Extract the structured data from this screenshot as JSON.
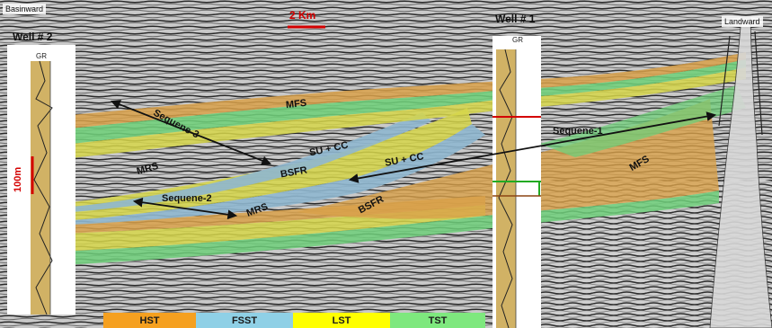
{
  "header": {
    "basinward": "Basinward",
    "landward": "Landward",
    "scale_bar": "2 Km"
  },
  "wells": {
    "well2": {
      "title": "Well # 2",
      "log": "GR",
      "depth_bar": "100m"
    },
    "well1": {
      "title": "Well # 1",
      "log": "GR"
    }
  },
  "annotations": {
    "sequence1": "Sequene-1",
    "sequence2": "Sequene-2",
    "sequence3": "Sequene-3",
    "mfs_top": "MFS",
    "mfs_right": "MFS",
    "mrs_left": "MRS",
    "mrs_mid": "MRS",
    "su_cc_left": "SU + CC",
    "su_cc_right": "SU + CC",
    "bsfr_upper": "BSFR",
    "bsfr_lower": "BSFR"
  },
  "legend": [
    {
      "label": "HST",
      "color": "#f5a020"
    },
    {
      "label": "FSST",
      "color": "#8fd0e6"
    },
    {
      "label": "LST",
      "color": "#ffff00"
    },
    {
      "label": "TST",
      "color": "#7ee87e"
    }
  ],
  "colors": {
    "hst": "#d9a14a",
    "fsst": "#8fb7cf",
    "lst": "#d6d64a",
    "tst": "#6fcf7a",
    "scale_red": "#d40000",
    "arrow": "#111111"
  }
}
